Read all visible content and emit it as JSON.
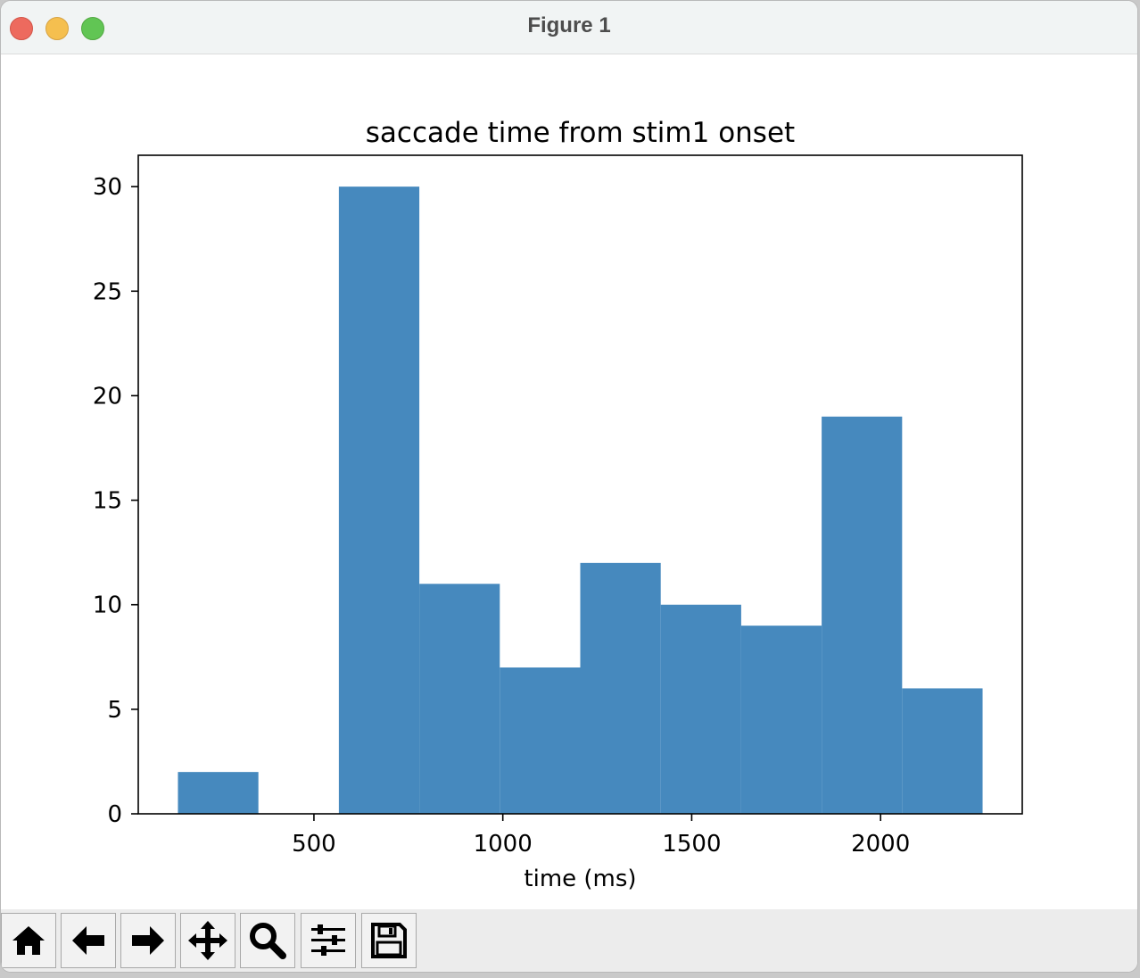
{
  "window": {
    "title": "Figure 1"
  },
  "toolbar": {
    "buttons": [
      {
        "name": "home-button",
        "icon": "home-icon"
      },
      {
        "name": "back-button",
        "icon": "arrow-left-icon"
      },
      {
        "name": "forward-button",
        "icon": "arrow-right-icon"
      },
      {
        "name": "pan-button",
        "icon": "move-icon"
      },
      {
        "name": "zoom-button",
        "icon": "magnifier-icon"
      },
      {
        "name": "configure-subplots-button",
        "icon": "sliders-icon"
      },
      {
        "name": "save-button",
        "icon": "floppy-disk-icon"
      }
    ]
  },
  "chart_data": {
    "type": "bar",
    "title": "saccade time from stim1 onset",
    "xlabel": "time (ms)",
    "ylabel": "",
    "bin_edges": [
      140,
      353,
      566,
      779,
      992,
      1205,
      1418,
      1631,
      1844,
      2057,
      2270
    ],
    "values": [
      2,
      0,
      30,
      11,
      7,
      12,
      10,
      9,
      19,
      6
    ],
    "xlim": [
      35,
      2375
    ],
    "ylim": [
      0,
      31.5
    ],
    "xticks": [
      500,
      1000,
      1500,
      2000
    ],
    "yticks": [
      0,
      5,
      10,
      15,
      20,
      25,
      30
    ],
    "bar_color": "#4689be",
    "grid": false
  }
}
